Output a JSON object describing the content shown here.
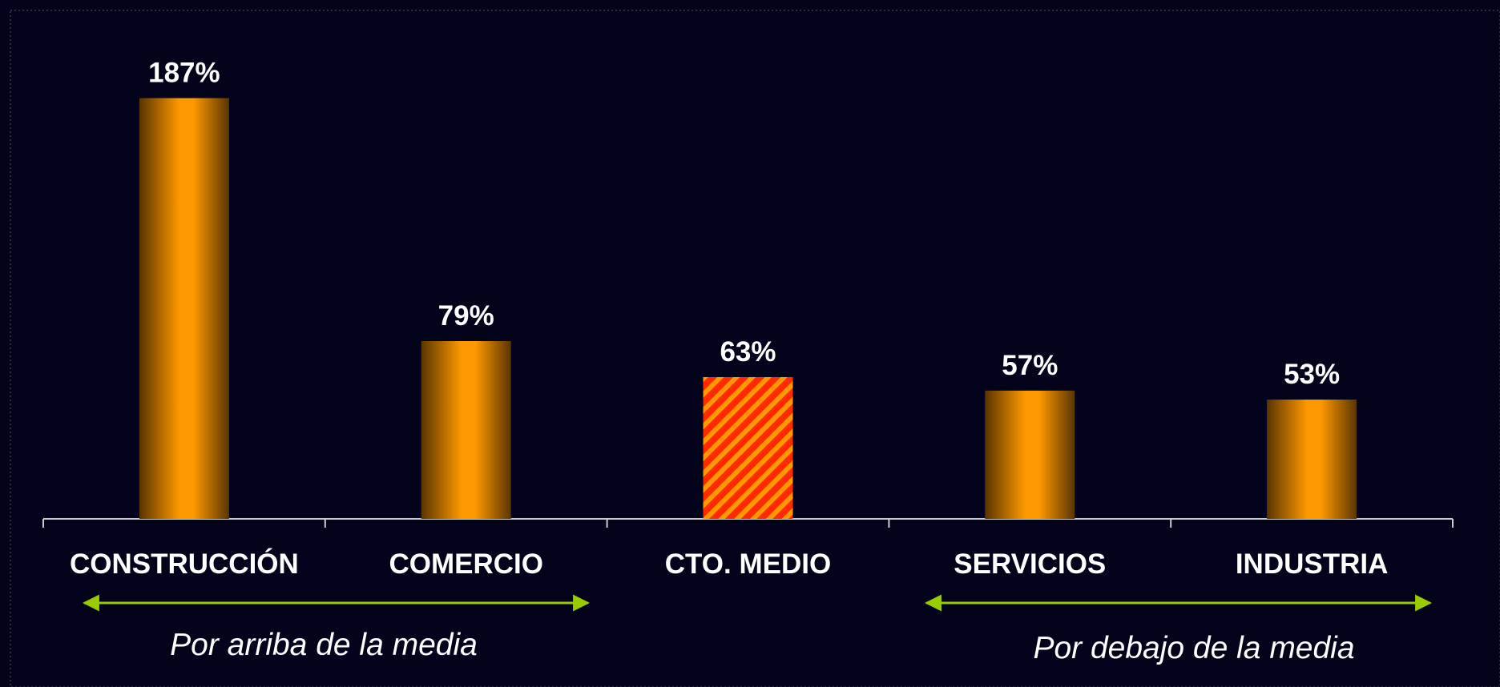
{
  "chart_data": {
    "type": "bar",
    "categories": [
      "CONSTRUCCIÓN",
      "COMERCIO",
      "CTO. MEDIO",
      "SERVICIOS",
      "INDUSTRIA"
    ],
    "values": [
      187,
      79,
      63,
      57,
      53
    ],
    "value_labels": [
      "187%",
      "79%",
      "63%",
      "57%",
      "53%"
    ],
    "color": "#ff9900",
    "patterns": [
      "solid",
      "solid",
      "hatch",
      "solid",
      "solid"
    ],
    "annotations": [
      "Por arriba de la media",
      "Por debajo de la media"
    ]
  }
}
